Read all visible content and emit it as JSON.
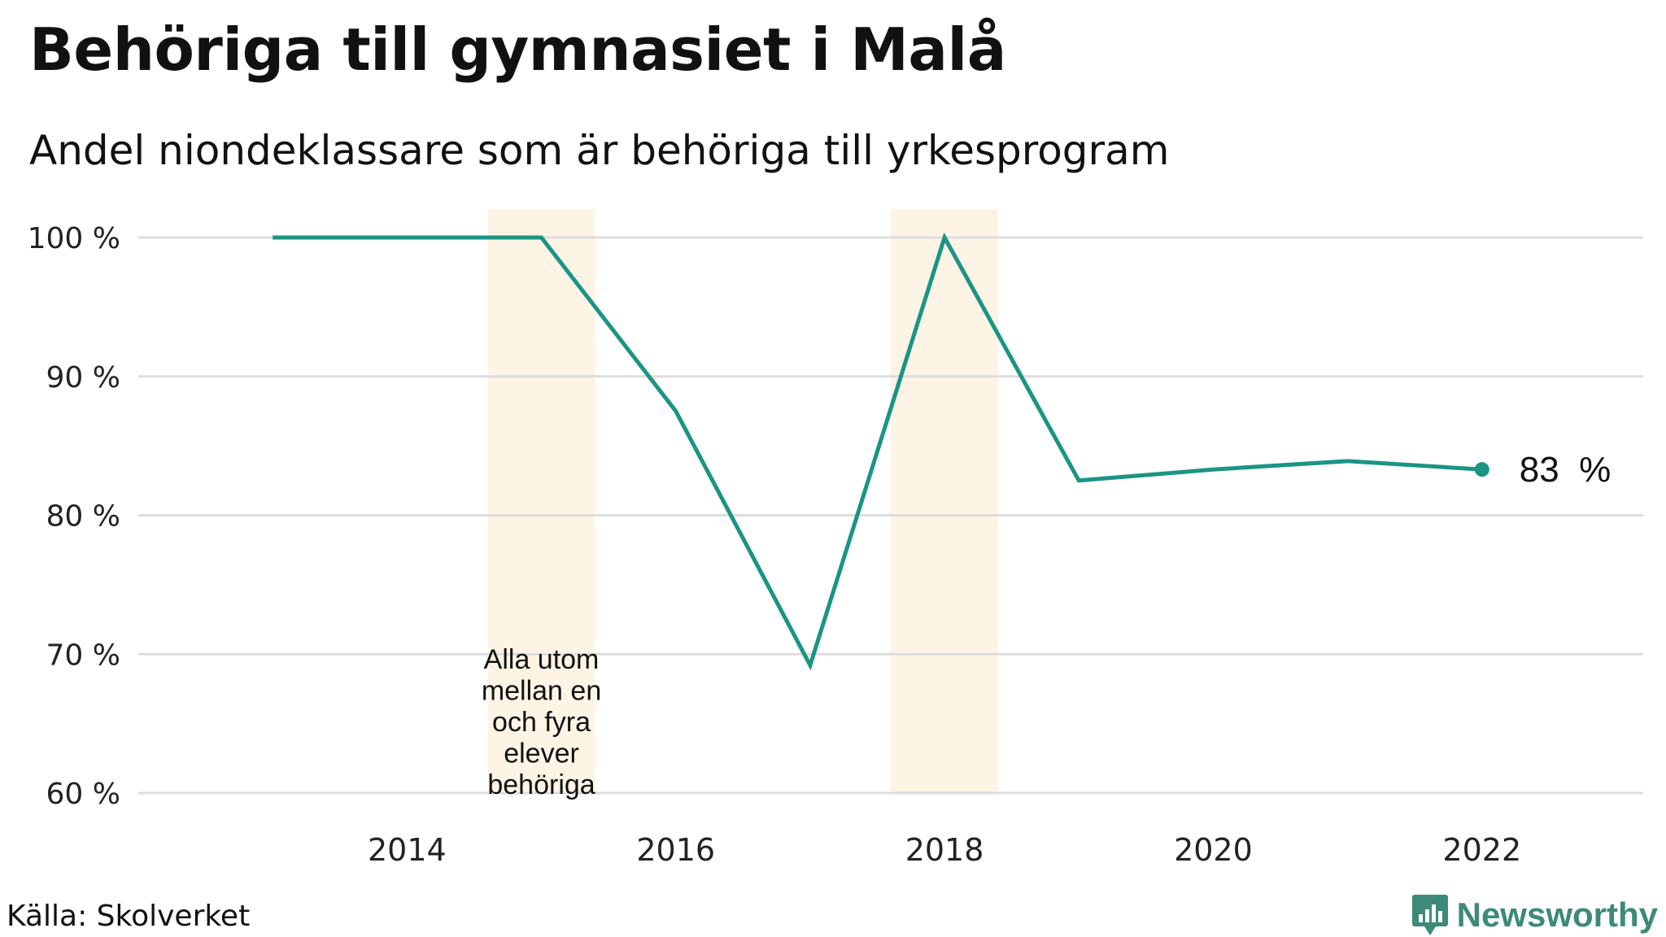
{
  "chart_data": {
    "type": "line",
    "title": "Behöriga till gymnasiet i Malå",
    "subtitle": "Andel niondeklassare som är behöriga till yrkesprogram",
    "x": [
      2013,
      2015,
      2016,
      2017,
      2018,
      2019,
      2020,
      2021,
      2022
    ],
    "series": [
      {
        "values": [
          100,
          100,
          87.5,
          69.2,
          100,
          82.5,
          83.3,
          83.9,
          83.3
        ]
      }
    ],
    "xlim": [
      2012.0,
      2023.2
    ],
    "ylim": [
      60,
      100
    ],
    "xticks": [
      2014,
      2016,
      2018,
      2020,
      2022
    ],
    "yticks": [
      60,
      70,
      80,
      90,
      100
    ],
    "ytick_labels": [
      "60 %",
      "70 %",
      "80 %",
      "90 %",
      "100 %"
    ],
    "y_grid": true,
    "highlight_bands": [
      {
        "from": 2014.6,
        "to": 2015.4
      },
      {
        "from": 2017.6,
        "to": 2018.4
      }
    ],
    "annotation": {
      "x": 2015,
      "lines": [
        "Alla utom",
        "mellan en",
        "och fyra",
        "elever",
        "behöriga"
      ]
    },
    "end_label": "83  %",
    "colors": {
      "line": "#1a9485",
      "band": "#fdf4e5",
      "grid": "#dddddd",
      "brand": "#3d8a78"
    }
  },
  "footer": {
    "source": "Källa: Skolverket",
    "brand": "Newsworthy",
    "brand_icon": "bar-chart-icon"
  }
}
